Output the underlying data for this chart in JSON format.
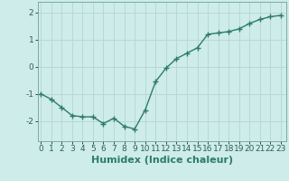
{
  "x": [
    0,
    1,
    2,
    3,
    4,
    5,
    6,
    7,
    8,
    9,
    10,
    11,
    12,
    13,
    14,
    15,
    16,
    17,
    18,
    19,
    20,
    21,
    22,
    23
  ],
  "y": [
    -1.0,
    -1.2,
    -1.5,
    -1.8,
    -1.85,
    -1.85,
    -2.1,
    -1.9,
    -2.2,
    -2.3,
    -1.6,
    -0.55,
    -0.05,
    0.3,
    0.5,
    0.7,
    1.2,
    1.25,
    1.3,
    1.4,
    1.6,
    1.75,
    1.85,
    1.9
  ],
  "line_color": "#2d7b6e",
  "marker": "+",
  "marker_size": 4,
  "marker_linewidth": 1.0,
  "background_color": "#ceecea",
  "grid_color": "#b8d8d5",
  "spine_color": "#7aaba6",
  "xlabel": "Humidex (Indice chaleur)",
  "xlabel_fontsize": 8,
  "xlabel_color": "#2d7b6e",
  "xlabel_bold": true,
  "yticks": [
    -2,
    -1,
    0,
    1,
    2
  ],
  "ytick_labels": [
    "-2",
    "-1",
    "0",
    "1",
    "2"
  ],
  "xticks": [
    0,
    1,
    2,
    3,
    4,
    5,
    6,
    7,
    8,
    9,
    10,
    11,
    12,
    13,
    14,
    15,
    16,
    17,
    18,
    19,
    20,
    21,
    22,
    23
  ],
  "xlim": [
    -0.3,
    23.5
  ],
  "ylim": [
    -2.75,
    2.4
  ],
  "tick_fontsize": 6.5,
  "tick_color": "#2d5f5a",
  "linewidth": 1.0
}
